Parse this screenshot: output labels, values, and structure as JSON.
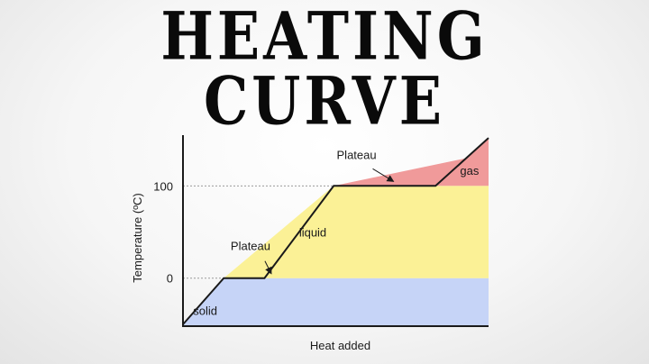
{
  "header": {
    "title_line1": "HEATING",
    "title_line2": "CURVE"
  },
  "chart_data": {
    "type": "line",
    "xlabel": "Heat added",
    "ylabel": "Temperature (ºC)",
    "y_ticks": [
      0,
      100
    ],
    "ylim": [
      -52,
      155
    ],
    "x": [
      0,
      1,
      2,
      3.7,
      6.2,
      6.95,
      7.5
    ],
    "y": [
      -50,
      0,
      0,
      100,
      100,
      130,
      152
    ],
    "phase_regions": [
      {
        "label": "solid",
        "y_range": [
          -52,
          0
        ],
        "color": "#c6d4f7"
      },
      {
        "label": "liquid",
        "y_range": [
          0,
          100
        ],
        "color": "#fbf196"
      },
      {
        "label": "gas",
        "y_range": [
          100,
          152
        ],
        "color": "#f09a9a"
      }
    ],
    "annotations": [
      {
        "text": "Plateau",
        "target_x": 2.1,
        "target_y": 0
      },
      {
        "text": "Plateau",
        "target_x": 5.1,
        "target_y": 100
      }
    ],
    "grid": "dotted reference lines at 0 and 100",
    "line_color": "#1a1a1a"
  }
}
